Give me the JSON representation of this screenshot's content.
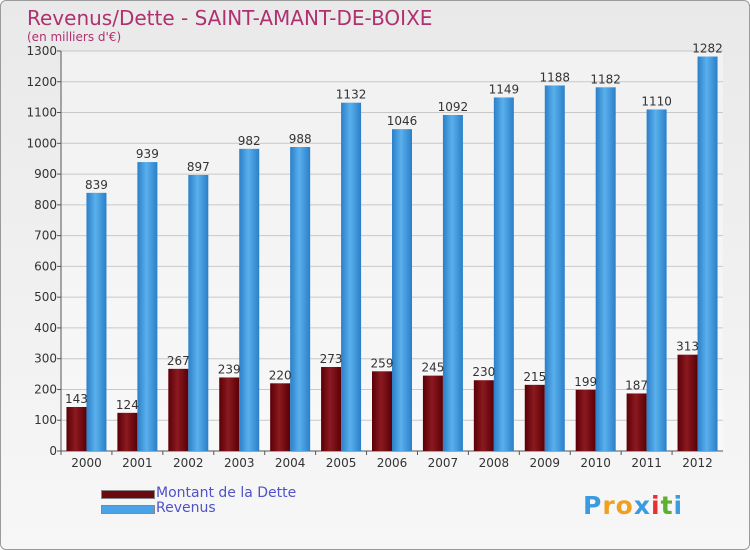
{
  "title": "Revenus/Dette - SAINT-AMANT-DE-BOIXE",
  "subtitle": "(en milliers d'€)",
  "chart_data": {
    "type": "bar",
    "categories": [
      "2000",
      "2001",
      "2002",
      "2003",
      "2004",
      "2005",
      "2006",
      "2007",
      "2008",
      "2009",
      "2010",
      "2011",
      "2012"
    ],
    "series": [
      {
        "name": "Montant de la Dette",
        "color": "#7a0c12",
        "values": [
          143,
          124,
          267,
          239,
          220,
          273,
          259,
          245,
          230,
          215,
          199,
          187,
          313
        ]
      },
      {
        "name": "Revenus",
        "color": "#4aa3e6",
        "values": [
          839,
          939,
          897,
          982,
          988,
          1132,
          1046,
          1092,
          1149,
          1188,
          1182,
          1110,
          1282
        ]
      }
    ],
    "ylim": [
      0,
      1300
    ],
    "yticks": [
      0,
      100,
      200,
      300,
      400,
      500,
      600,
      700,
      800,
      900,
      1000,
      1100,
      1200,
      1300
    ],
    "grid": true,
    "legend_position": "bottom-left"
  },
  "legend": [
    {
      "label": "Montant de la Dette",
      "color": "#7a0c12"
    },
    {
      "label": "Revenus",
      "color": "#4aa3e6"
    }
  ],
  "logo": {
    "letters": [
      "P",
      "r",
      "o",
      "x",
      "i",
      "t",
      "i"
    ],
    "colors": [
      "#3a9be0",
      "#f0a020",
      "#f0a020",
      "#3a9be0",
      "#e83030",
      "#60b030",
      "#3a9be0"
    ]
  }
}
